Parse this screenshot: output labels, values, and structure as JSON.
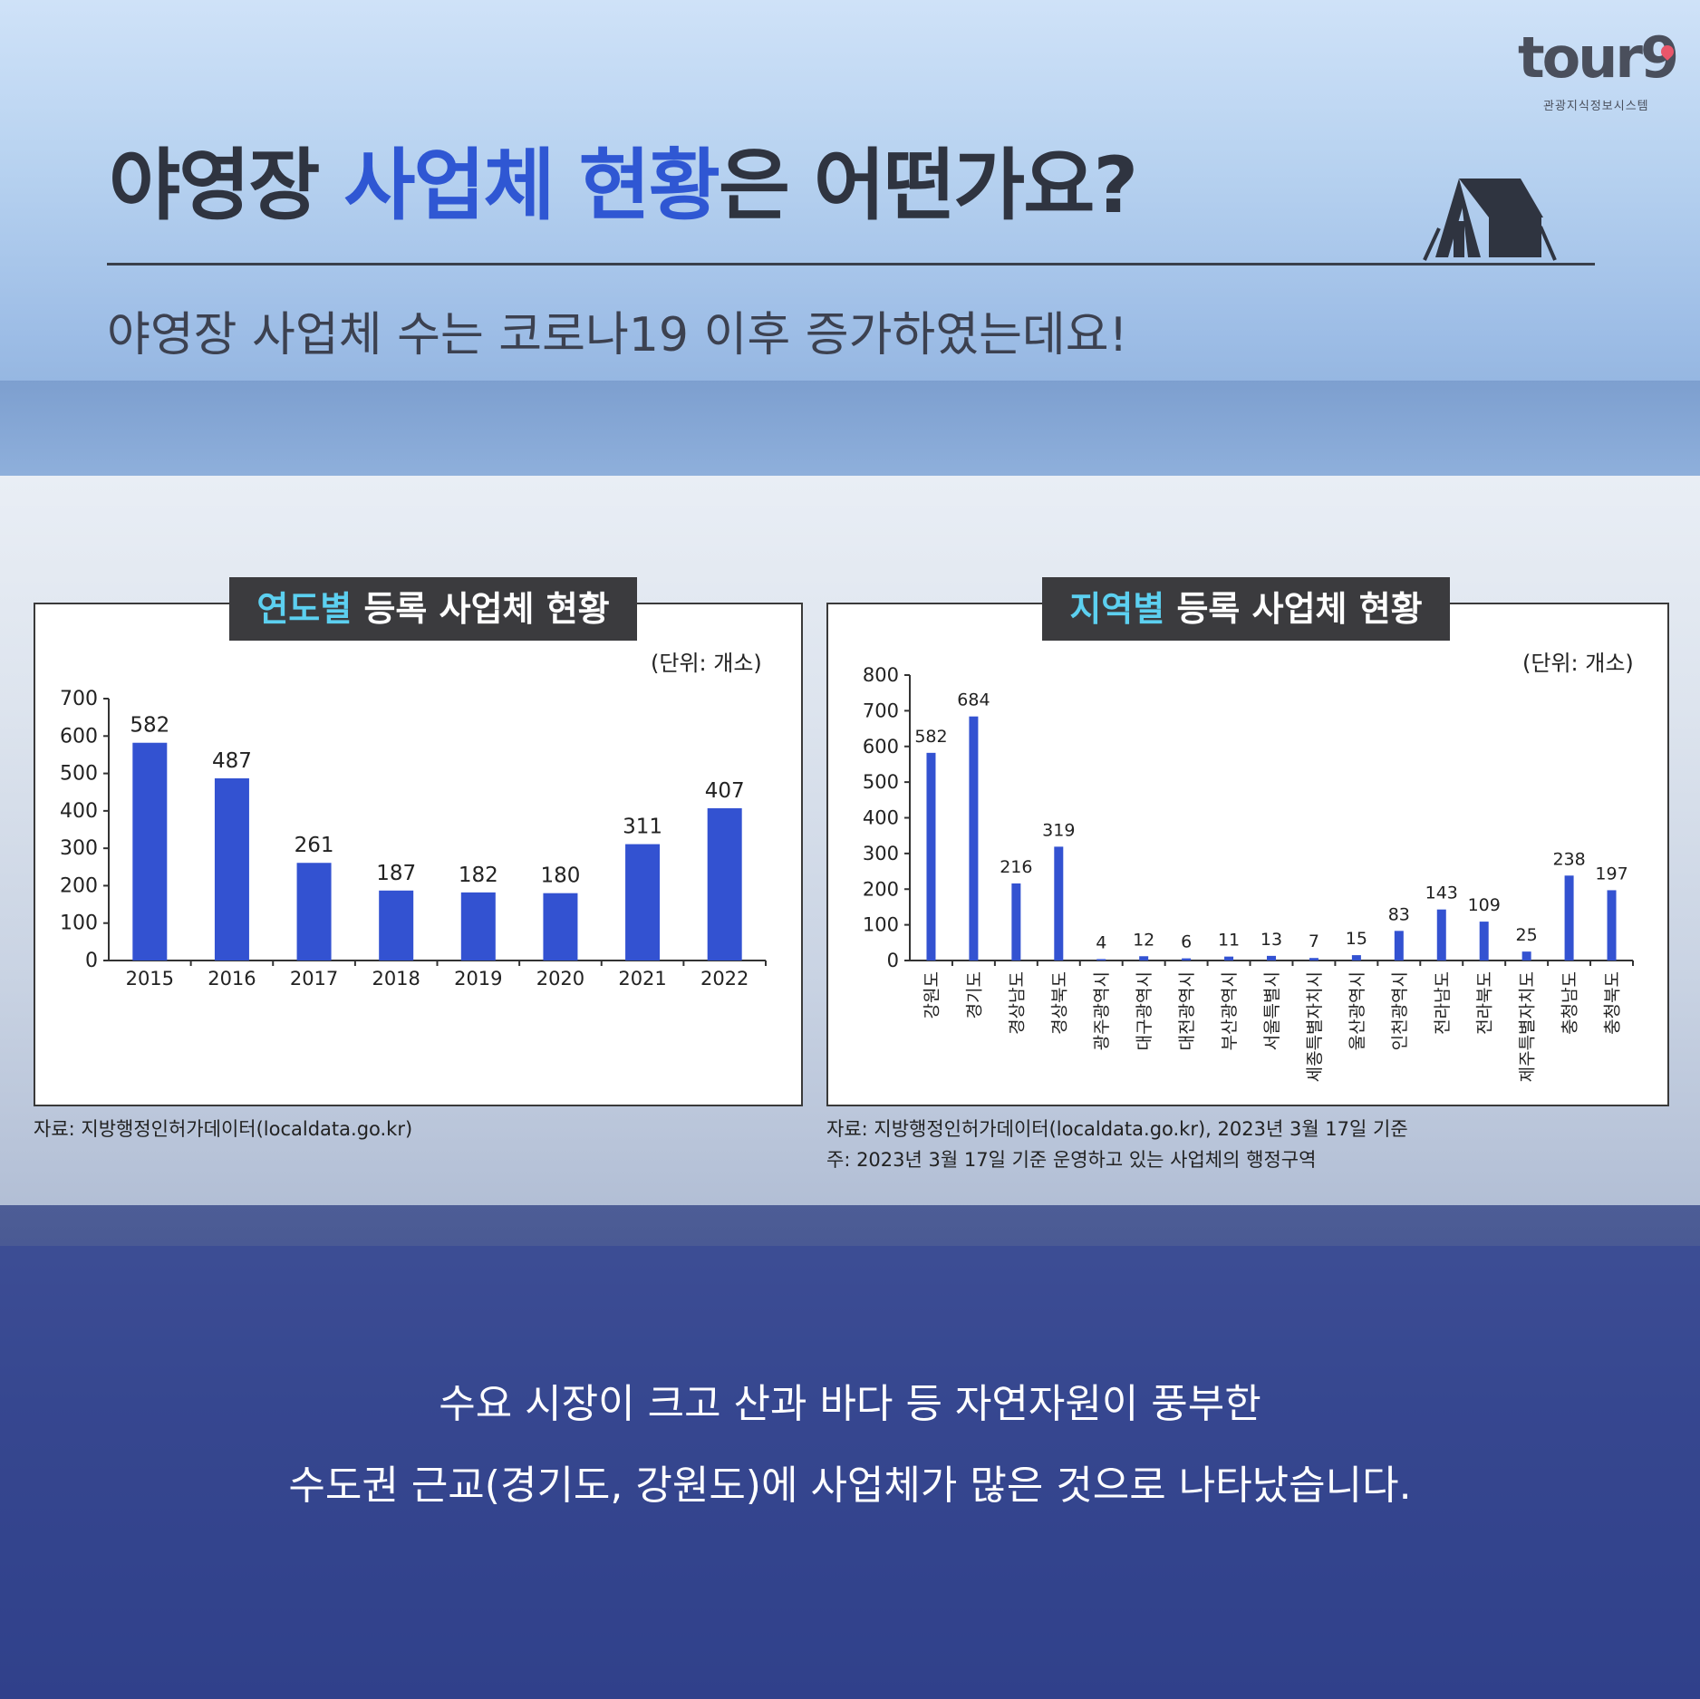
{
  "logo": {
    "text": "tour9",
    "subtitle": "관광지식정보시스템"
  },
  "header": {
    "title_pre": "야영장 ",
    "title_highlight": "사업체 현황",
    "title_post": "은 어떤가요?",
    "subtitle": "야영장 사업체 수는 코로나19 이후 증가하였는데요!"
  },
  "panels": {
    "left": {
      "title_accent": "연도별",
      "title_rest": " 등록 사업체 현황",
      "unit": "(단위: 개소)",
      "source": "자료: 지방행정인허가데이터(localdata.go.kr)"
    },
    "right": {
      "title_accent": "지역별",
      "title_rest": " 등록 사업체 현황",
      "unit": "(단위: 개소)",
      "source": "자료: 지방행정인허가데이터(localdata.go.kr), 2023년 3월 17일 기준",
      "note": "주: 2023년 3월 17일 기준 운영하고 있는 사업체의 행정구역"
    }
  },
  "bottom": {
    "line1": "수요 시장이 크고 산과 바다 등 자연자원이 풍부한",
    "line2": "수도권 근교(경기도, 강원도)에 사업체가 많은 것으로 나타났습니다."
  },
  "colors": {
    "bar": "#3352d1",
    "highlight": "#2f57d3",
    "accent": "#5cd0f0"
  },
  "chart_data": [
    {
      "type": "bar",
      "title": "연도별 등록 사업체 현황",
      "categories": [
        "2015",
        "2016",
        "2017",
        "2018",
        "2019",
        "2020",
        "2021",
        "2022"
      ],
      "values": [
        582,
        487,
        261,
        187,
        182,
        180,
        311,
        407
      ],
      "ylim": [
        0,
        700
      ],
      "yticks": [
        0,
        100,
        200,
        300,
        400,
        500,
        600,
        700
      ],
      "unit": "(단위: 개소)"
    },
    {
      "type": "bar",
      "title": "지역별 등록 사업체 현황",
      "categories": [
        "강원도",
        "경기도",
        "경상남도",
        "경상북도",
        "광주광역시",
        "대구광역시",
        "대전광역시",
        "부산광역시",
        "서울특별시",
        "세종특별자치시",
        "울산광역시",
        "인천광역시",
        "전라남도",
        "전라북도",
        "제주특별자치도",
        "충청남도",
        "충청북도"
      ],
      "values": [
        582,
        684,
        216,
        319,
        4,
        12,
        6,
        11,
        13,
        7,
        15,
        83,
        143,
        109,
        25,
        238,
        197
      ],
      "ylim": [
        0,
        800
      ],
      "yticks": [
        0,
        100,
        200,
        300,
        400,
        500,
        600,
        700,
        800
      ],
      "unit": "(단위: 개소)"
    }
  ]
}
